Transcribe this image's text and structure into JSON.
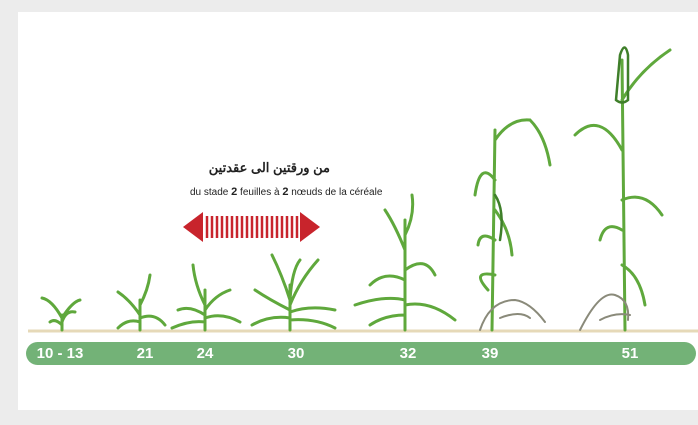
{
  "header": {
    "title": "من ورقتين الى عقدتين",
    "subtitle_parts": [
      "du stade ",
      "2",
      " feuilles à ",
      "2",
      " nœuds de la céréale"
    ]
  },
  "stages": [
    "10 - 13",
    "21",
    "24",
    "30",
    "32",
    "39",
    "51"
  ]
}
